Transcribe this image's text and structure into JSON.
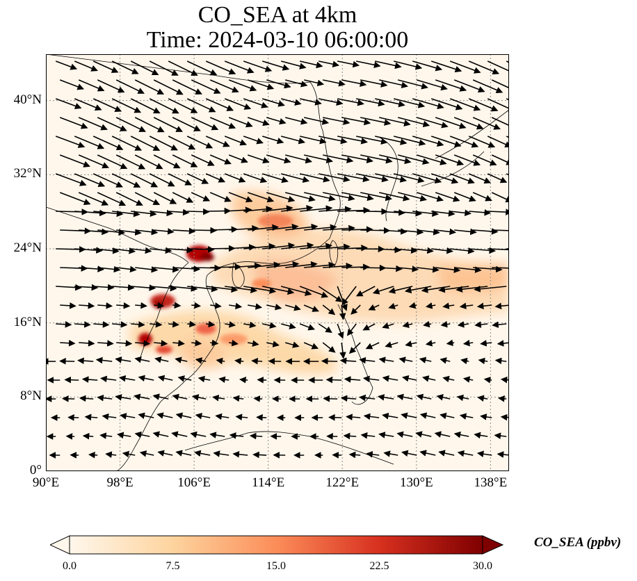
{
  "title": {
    "line1": "CO_SEA at 4km",
    "line2": "Time: 2024-03-10 06:00:00"
  },
  "map": {
    "lon_range": [
      90,
      140
    ],
    "lat_range": [
      0,
      45
    ],
    "lat_ticks": [
      0,
      8,
      16,
      24,
      32,
      40
    ],
    "lat_tick_labels": [
      "0°",
      "8°N",
      "16°N",
      "24°N",
      "32°N",
      "40°N"
    ],
    "lon_ticks": [
      90,
      98,
      106,
      114,
      122,
      130,
      138
    ],
    "lon_tick_labels": [
      "90°E",
      "98°E",
      "106°E",
      "114°E",
      "122°E",
      "130°E",
      "138°E"
    ],
    "gridlines": true,
    "fill_colormap": "OrRd",
    "wind_vectors_shown": true
  },
  "colorbar": {
    "label": "CO_SEA (ppbv)",
    "min": 0.0,
    "max": 30.0,
    "ticks": [
      0.0,
      7.5,
      15.0,
      22.5,
      30.0
    ],
    "tick_labels": [
      "0.0",
      "7.5",
      "15.0",
      "22.5",
      "30.0"
    ],
    "extend": "both",
    "colors": [
      "#fff7ec",
      "#fdd49e",
      "#fc8d59",
      "#d7301f",
      "#7f0000"
    ]
  }
}
